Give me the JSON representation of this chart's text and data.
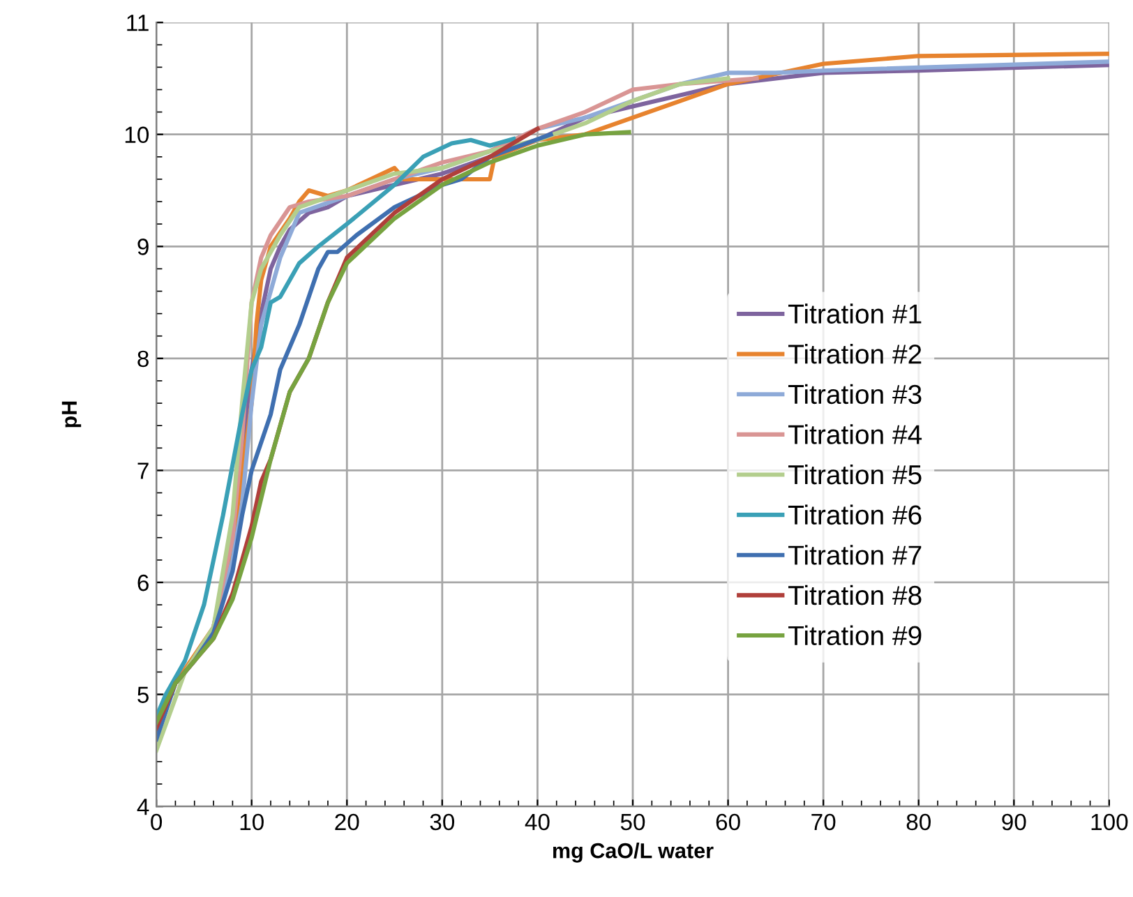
{
  "chart_data": {
    "type": "line",
    "xlabel": "mg CaO/L water",
    "ylabel": "pH",
    "xlim": [
      0,
      100
    ],
    "xticks": [
      0,
      10,
      20,
      30,
      40,
      50,
      60,
      70,
      80,
      90,
      100
    ],
    "ylim": [
      4,
      11
    ],
    "yticks": [
      4,
      5,
      6,
      7,
      8,
      9,
      10,
      11
    ],
    "grid": true,
    "legend": "right",
    "marker": "none",
    "line_style": "solid",
    "series": [
      {
        "name": "Titration #1",
        "color": "#7e649e",
        "x": [
          0,
          2,
          4,
          6,
          8,
          9,
          10,
          11,
          12,
          13,
          14,
          16,
          18,
          20,
          25,
          30,
          35,
          40,
          45,
          50,
          60,
          70,
          80,
          100
        ],
        "values": [
          4.7,
          5.1,
          5.3,
          5.6,
          6.4,
          7.2,
          7.9,
          8.4,
          8.8,
          9.0,
          9.15,
          9.3,
          9.35,
          9.45,
          9.55,
          9.65,
          9.8,
          9.95,
          10.15,
          10.25,
          10.45,
          10.55,
          10.57,
          10.62
        ]
      },
      {
        "name": "Titration #2",
        "color": "#e7832e",
        "x": [
          0,
          2,
          4,
          6,
          8,
          9,
          10,
          10.5,
          11,
          12,
          14,
          15,
          16,
          18,
          20,
          25,
          26,
          35,
          35.5,
          40,
          45,
          50,
          55,
          60,
          70,
          80,
          100
        ],
        "values": [
          4.7,
          5.1,
          5.35,
          5.6,
          6.3,
          7.0,
          7.6,
          8.3,
          8.7,
          9.0,
          9.25,
          9.4,
          9.5,
          9.45,
          9.5,
          9.7,
          9.6,
          9.6,
          9.8,
          9.95,
          10.0,
          10.15,
          10.3,
          10.45,
          10.63,
          10.7,
          10.72
        ]
      },
      {
        "name": "Titration #3",
        "color": "#8eaad8",
        "x": [
          0,
          2,
          4,
          6,
          8,
          9,
          10,
          11,
          13,
          15,
          20,
          25,
          30,
          35,
          40,
          45,
          50,
          55,
          60,
          65,
          70,
          100
        ],
        "values": [
          4.7,
          5.1,
          5.3,
          5.6,
          6.2,
          6.7,
          7.6,
          8.3,
          8.9,
          9.3,
          9.45,
          9.6,
          9.7,
          9.85,
          10.05,
          10.15,
          10.3,
          10.45,
          10.55,
          10.55,
          10.57,
          10.65
        ]
      },
      {
        "name": "Titration #4",
        "color": "#d99594",
        "x": [
          2,
          4,
          6,
          8,
          9,
          10,
          11,
          12,
          14,
          16,
          20,
          25,
          30,
          35,
          40,
          45,
          50,
          55,
          63
        ],
        "values": [
          5.1,
          5.3,
          5.6,
          6.4,
          7.3,
          8.5,
          8.9,
          9.1,
          9.35,
          9.4,
          9.45,
          9.6,
          9.75,
          9.85,
          10.05,
          10.2,
          10.4,
          10.45,
          10.5
        ]
      },
      {
        "name": "Titration #5",
        "color": "#b3ce8d",
        "x": [
          0,
          3,
          6,
          8,
          9,
          10,
          11,
          13,
          15,
          20,
          25,
          30,
          35,
          40,
          45,
          50,
          55,
          60
        ],
        "values": [
          4.5,
          5.2,
          5.6,
          6.6,
          7.6,
          8.5,
          8.8,
          9.1,
          9.35,
          9.5,
          9.65,
          9.7,
          9.85,
          9.95,
          10.1,
          10.3,
          10.45,
          10.5
        ]
      },
      {
        "name": "Titration #6",
        "color": "#3aa0b6",
        "x": [
          0,
          1,
          3,
          5,
          7,
          9,
          10,
          11,
          12,
          13,
          14,
          15,
          17,
          20,
          25,
          28,
          31,
          33,
          35,
          37.5
        ],
        "values": [
          4.8,
          5.0,
          5.3,
          5.8,
          6.6,
          7.5,
          7.9,
          8.1,
          8.5,
          8.55,
          8.7,
          8.85,
          9.0,
          9.2,
          9.55,
          9.8,
          9.92,
          9.95,
          9.9,
          9.96
        ]
      },
      {
        "name": "Titration #7",
        "color": "#3f6fb0",
        "x": [
          0,
          2,
          4,
          6,
          8,
          9,
          10,
          12,
          13,
          15,
          17,
          18,
          19,
          21,
          25,
          30,
          32,
          35,
          41.4
        ],
        "values": [
          4.6,
          5.1,
          5.3,
          5.55,
          6.1,
          6.6,
          7.0,
          7.5,
          7.9,
          8.3,
          8.8,
          8.95,
          8.95,
          9.1,
          9.35,
          9.55,
          9.6,
          9.8,
          10.0
        ]
      },
      {
        "name": "Titration #8",
        "color": "#b03f3a",
        "x": [
          0,
          2,
          4,
          6,
          8,
          10,
          11,
          12,
          14,
          16,
          18,
          20,
          25,
          30,
          35,
          40
        ],
        "values": [
          4.7,
          5.1,
          5.3,
          5.5,
          5.9,
          6.5,
          6.9,
          7.1,
          7.7,
          8.0,
          8.5,
          8.9,
          9.3,
          9.6,
          9.8,
          10.05
        ]
      },
      {
        "name": "Titration #9",
        "color": "#77a340",
        "x": [
          0,
          2,
          4,
          6,
          8,
          10,
          12,
          14,
          16,
          18,
          20,
          25,
          30,
          35,
          40,
          45,
          49.6
        ],
        "values": [
          4.75,
          5.1,
          5.3,
          5.5,
          5.85,
          6.4,
          7.1,
          7.7,
          8.0,
          8.5,
          8.85,
          9.25,
          9.55,
          9.75,
          9.9,
          10.0,
          10.02
        ]
      }
    ]
  }
}
